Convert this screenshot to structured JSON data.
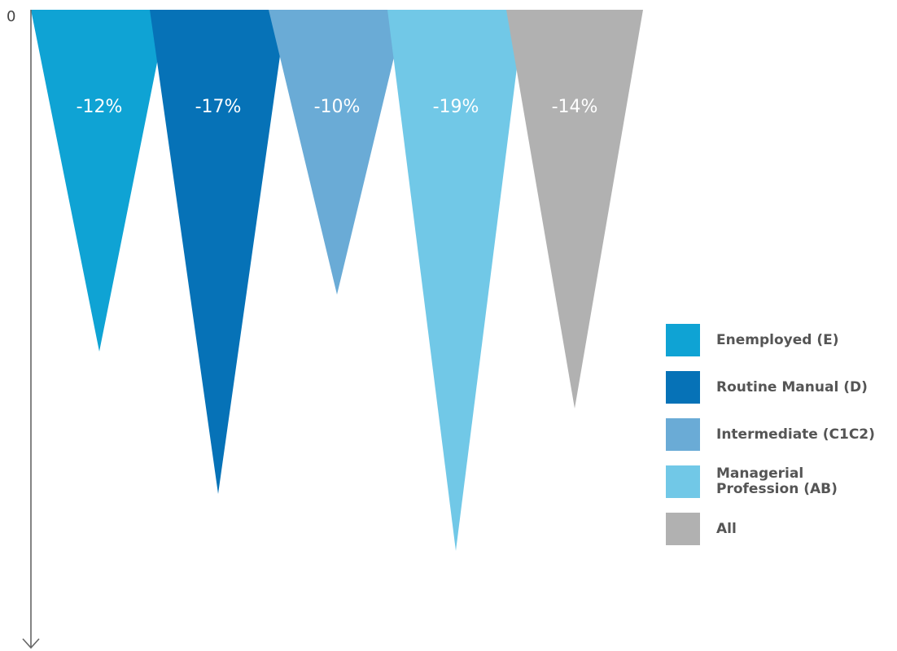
{
  "chart_data": {
    "type": "bar",
    "y_origin_label": "0",
    "ylim": [
      0,
      25
    ],
    "y_direction": "down",
    "series": [
      {
        "name": "Enemployed (E)",
        "value": -12,
        "label": "-12%",
        "color": "#0fa3d4"
      },
      {
        "name": "Routine Manual (D)",
        "value": -17,
        "label": "-17%",
        "color": "#0672b7"
      },
      {
        "name": "Intermediate (C1C2)",
        "value": -10,
        "label": "-10%",
        "color": "#6aabd6"
      },
      {
        "name": "Managerial Profession (AB)",
        "value": -19,
        "label": "-19%",
        "color": "#71c8e7"
      },
      {
        "name": "All",
        "value": -14,
        "label": "-14%",
        "color": "#b1b1b1"
      }
    ]
  },
  "legend": {
    "items": [
      {
        "label": "Enemployed (E)",
        "color": "#0fa3d4"
      },
      {
        "label": "Routine Manual (D)",
        "color": "#0672b7"
      },
      {
        "label": "Intermediate (C1C2)",
        "color": "#6aabd6"
      },
      {
        "label": "Managerial\nProfession (AB)",
        "color": "#71c8e7"
      },
      {
        "label": "All",
        "color": "#b1b1b1"
      }
    ]
  }
}
